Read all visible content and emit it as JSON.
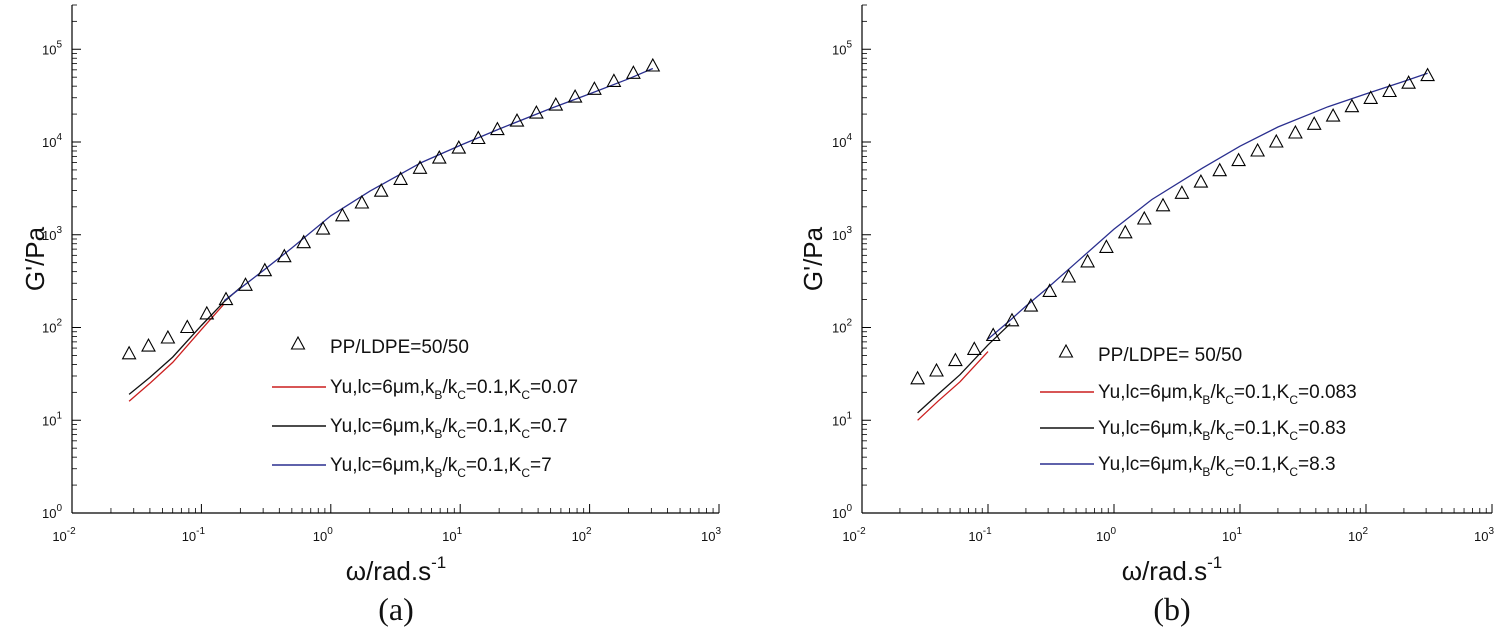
{
  "chart_data": [
    {
      "type": "line",
      "panel_label": "(a)",
      "xlabel": "ω/rad.s",
      "xlabel_sup": "-1",
      "ylabel": "G'/Pa",
      "xscale": "log",
      "yscale": "log",
      "xlim": [
        0.01,
        1000
      ],
      "ylim": [
        1,
        300000
      ],
      "x_ticks": [
        {
          "value": 0.01,
          "base": "10",
          "exp": "-2"
        },
        {
          "value": 0.1,
          "base": "10",
          "exp": "-1"
        },
        {
          "value": 1,
          "base": "10",
          "exp": "0"
        },
        {
          "value": 10,
          "base": "10",
          "exp": "1"
        },
        {
          "value": 100,
          "base": "10",
          "exp": "2"
        },
        {
          "value": 1000,
          "base": "10",
          "exp": "3"
        }
      ],
      "y_ticks": [
        {
          "value": 1,
          "base": "10",
          "exp": "0"
        },
        {
          "value": 10,
          "base": "10",
          "exp": "1"
        },
        {
          "value": 100,
          "base": "10",
          "exp": "2"
        },
        {
          "value": 1000,
          "base": "10",
          "exp": "3"
        },
        {
          "value": 10000,
          "base": "10",
          "exp": "4"
        },
        {
          "value": 100000,
          "base": "10",
          "exp": "5"
        }
      ],
      "legend_position": "bottom-right",
      "series": [
        {
          "name": "PP/LDPE=50/50",
          "kind": "scatter",
          "marker": "triangle-open",
          "color": "#000000",
          "x": [
            0.0276,
            0.039,
            0.0551,
            0.0778,
            0.11,
            0.155,
            0.219,
            0.309,
            0.437,
            0.617,
            0.871,
            1.23,
            1.74,
            2.45,
            3.46,
            4.89,
            6.9,
            9.75,
            13.8,
            19.4,
            27.5,
            38.8,
            54.8,
            77.3,
            109,
            154,
            218,
            308
          ],
          "y": [
            52,
            63,
            77,
            100,
            140,
            200,
            285,
            410,
            580,
            820,
            1150,
            1600,
            2200,
            2950,
            3950,
            5200,
            6700,
            8600,
            10900,
            13600,
            16800,
            20500,
            25000,
            30500,
            37000,
            45000,
            55000,
            66000
          ]
        },
        {
          "name": "Yu,lc=6μm,k_B/k_C=0.1,K_C=0.07",
          "label_parts": [
            "Yu,lc=6μm,k",
            "B",
            "/k",
            "C",
            "=0.1,K",
            "C",
            "=0.07"
          ],
          "kind": "line",
          "color": "#cc1f1f",
          "x": [
            0.0276,
            0.04,
            0.06,
            0.1,
            0.15
          ],
          "y": [
            16,
            25,
            42,
            95,
            180
          ]
        },
        {
          "name": "Yu,lc=6μm,k_B/k_C=0.1,K_C=0.7",
          "label_parts": [
            "Yu,lc=6μm,k",
            "B",
            "/k",
            "C",
            "=0.1,K",
            "C",
            "=0.7"
          ],
          "kind": "line",
          "color": "#111111",
          "x": [
            0.0276,
            0.04,
            0.06,
            0.1,
            0.15,
            0.2
          ],
          "y": [
            19,
            29,
            48,
            105,
            190,
            270
          ]
        },
        {
          "name": "Yu,lc=6μm,k_B/k_C=0.1,K_C=7",
          "label_parts": [
            "Yu,lc=6μm,k",
            "B",
            "/k",
            "C",
            "=0.1,K",
            "C",
            "=7"
          ],
          "kind": "line",
          "color": "#2a2f8f",
          "x": [
            0.15,
            0.2,
            0.3,
            0.5,
            1,
            2,
            5,
            10,
            20,
            50,
            100,
            200,
            308
          ],
          "y": [
            195,
            265,
            410,
            720,
            1600,
            2950,
            6000,
            9200,
            13800,
            23000,
            33000,
            48000,
            62000
          ]
        }
      ]
    },
    {
      "type": "line",
      "panel_label": "(b)",
      "xlabel": "ω/rad.s",
      "xlabel_sup": "-1",
      "ylabel": "G'/Pa",
      "xscale": "log",
      "yscale": "log",
      "xlim": [
        0.01,
        1000
      ],
      "ylim": [
        1,
        300000
      ],
      "x_ticks": [
        {
          "value": 0.01,
          "base": "10",
          "exp": "-2"
        },
        {
          "value": 0.1,
          "base": "10",
          "exp": "-1"
        },
        {
          "value": 1,
          "base": "10",
          "exp": "0"
        },
        {
          "value": 10,
          "base": "10",
          "exp": "1"
        },
        {
          "value": 100,
          "base": "10",
          "exp": "2"
        },
        {
          "value": 1000,
          "base": "10",
          "exp": "3"
        }
      ],
      "y_ticks": [
        {
          "value": 1,
          "base": "10",
          "exp": "0"
        },
        {
          "value": 10,
          "base": "10",
          "exp": "1"
        },
        {
          "value": 100,
          "base": "10",
          "exp": "2"
        },
        {
          "value": 1000,
          "base": "10",
          "exp": "3"
        },
        {
          "value": 10000,
          "base": "10",
          "exp": "4"
        },
        {
          "value": 100000,
          "base": "10",
          "exp": "5"
        }
      ],
      "legend_position": "bottom-right",
      "series": [
        {
          "name": "PP/LDPE= 50/50",
          "kind": "scatter",
          "marker": "triangle-open",
          "color": "#000000",
          "x": [
            0.0276,
            0.039,
            0.0551,
            0.0778,
            0.11,
            0.155,
            0.219,
            0.309,
            0.437,
            0.617,
            0.871,
            1.23,
            1.74,
            2.45,
            3.46,
            4.89,
            6.9,
            9.75,
            13.8,
            19.4,
            27.5,
            38.8,
            54.8,
            77.3,
            109,
            154,
            218,
            308
          ],
          "y": [
            28,
            34,
            44,
            58,
            82,
            118,
            170,
            245,
            350,
            510,
            730,
            1050,
            1480,
            2050,
            2800,
            3700,
            4900,
            6300,
            8000,
            10000,
            12500,
            15500,
            19000,
            24000,
            29500,
            35000,
            43000,
            52000
          ]
        },
        {
          "name": "Yu,lc=6μm,k_B/k_C=0.1,K_C=0.083",
          "label_parts": [
            "Yu,lc=6μm,k",
            "B",
            "/k",
            "C",
            "=0.1,K",
            "C",
            "=0.083"
          ],
          "kind": "line",
          "color": "#cc1f1f",
          "x": [
            0.0276,
            0.04,
            0.06,
            0.1
          ],
          "y": [
            10,
            16,
            26,
            55
          ]
        },
        {
          "name": "Yu,lc=6μm,k_B/k_C=0.1,K_C=0.83",
          "label_parts": [
            "Yu,lc=6μm,k",
            "B",
            "/k",
            "C",
            "=0.1,K",
            "C",
            "=0.83"
          ],
          "kind": "line",
          "color": "#111111",
          "x": [
            0.0276,
            0.04,
            0.06,
            0.1,
            0.15
          ],
          "y": [
            12,
            19,
            31,
            65,
            110
          ]
        },
        {
          "name": "Yu,lc=6μm,k_B/k_C=0.1,K_C=8.3",
          "label_parts": [
            "Yu,lc=6μm,k",
            "B",
            "/k",
            "C",
            "=0.1,K",
            "C",
            "=8.3"
          ],
          "kind": "line",
          "color": "#2a2f8f",
          "x": [
            0.1,
            0.15,
            0.2,
            0.3,
            0.5,
            1,
            2,
            5,
            10,
            20,
            50,
            100,
            200,
            308
          ],
          "y": [
            75,
            120,
            170,
            270,
            500,
            1150,
            2400,
            5200,
            9000,
            14500,
            24000,
            33000,
            45000,
            55000
          ]
        }
      ]
    }
  ]
}
